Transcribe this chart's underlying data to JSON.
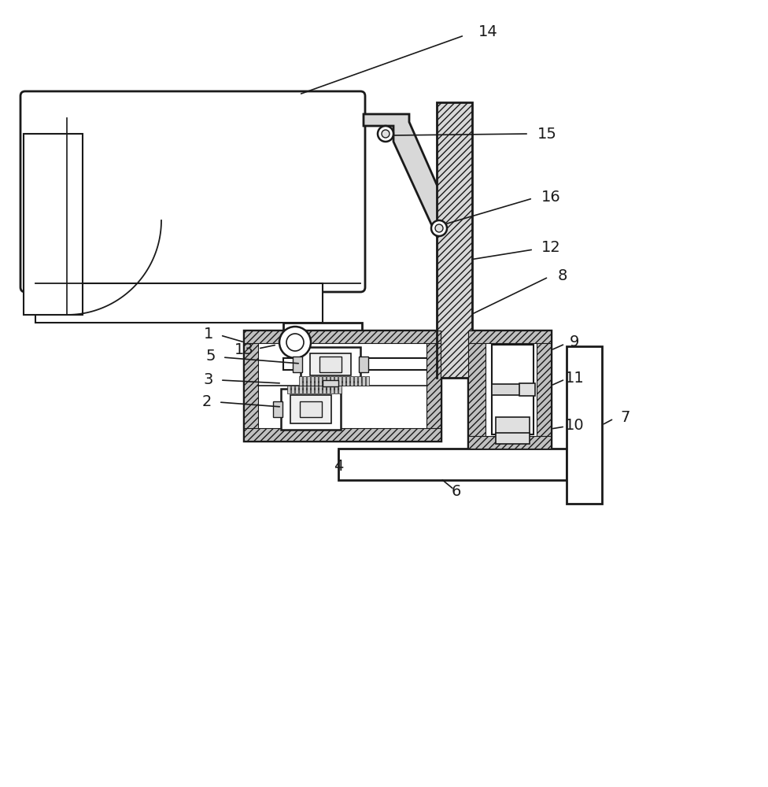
{
  "bg_color": "#ffffff",
  "lc": "#1a1a1a",
  "lw": 1.5,
  "fs": 14
}
